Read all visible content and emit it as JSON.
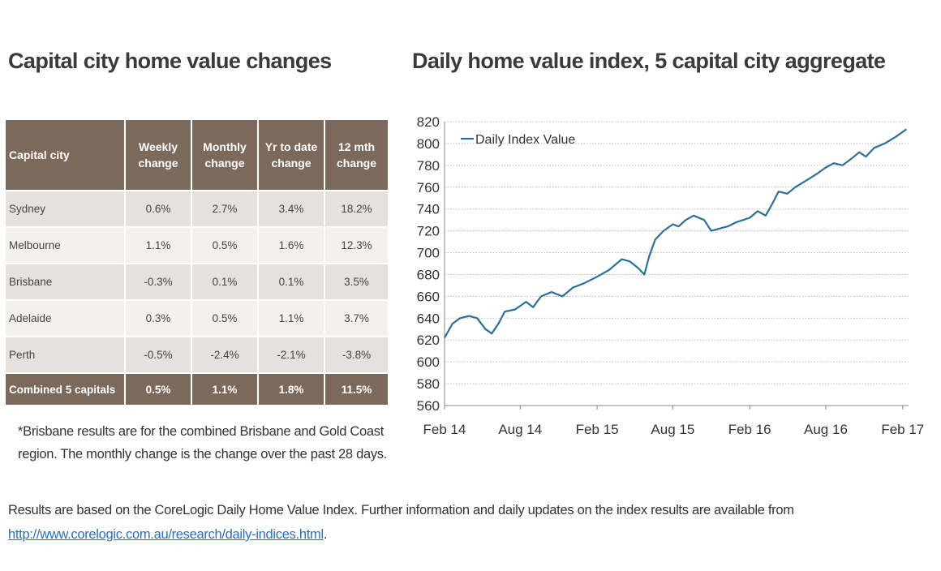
{
  "left_title": "Capital city home value changes",
  "right_title": "Daily home value index, 5 capital city aggregate",
  "table": {
    "headers": [
      "Capital city",
      "Weekly change",
      "Monthly change",
      "Yr to date change",
      "12 mth change"
    ],
    "rows": [
      [
        "Sydney",
        "0.6%",
        "2.7%",
        "3.4%",
        "18.2%"
      ],
      [
        "Melbourne",
        "1.1%",
        "0.5%",
        "1.6%",
        "12.3%"
      ],
      [
        "Brisbane",
        "-0.3%",
        "0.1%",
        "0.1%",
        "3.5%"
      ],
      [
        "Adelaide",
        "0.3%",
        "0.5%",
        "1.1%",
        "3.7%"
      ],
      [
        "Perth",
        "-0.5%",
        "-2.4%",
        "-2.1%",
        "-3.8%"
      ]
    ],
    "total": [
      "Combined 5 capitals",
      "0.5%",
      "1.1%",
      "1.8%",
      "11.5%"
    ]
  },
  "footnote": "*Brisbane results are for the combined Brisbane and Gold Coast region. The monthly change is the change over the past 28 days.",
  "bottom_note": {
    "text": "Results are based on the CoreLogic Daily Home Value Index.  Further information and daily updates on the index results are available from",
    "link": "http://www.corelogic.com.au/research/daily-indices.html",
    "trailing": "."
  },
  "colors": {
    "table_header": "#7b6a5c",
    "row_dark": "#e6e1dd",
    "row_light": "#f3f0ee",
    "line": "#2e6f96"
  },
  "chart_data": {
    "type": "line",
    "title": "Daily home value index, 5 capital city aggregate",
    "xlabel": "",
    "ylabel": "",
    "ylim": [
      560,
      820
    ],
    "yticks": [
      560,
      580,
      600,
      620,
      640,
      660,
      680,
      700,
      720,
      740,
      760,
      780,
      800,
      820
    ],
    "xlim": [
      "2014-02-01",
      "2017-02-15"
    ],
    "xticks": [
      {
        "label": "Feb 14",
        "date": "2014-02-01"
      },
      {
        "label": "Aug 14",
        "date": "2014-08-01"
      },
      {
        "label": "Feb 15",
        "date": "2015-02-01"
      },
      {
        "label": "Aug 15",
        "date": "2015-08-01"
      },
      {
        "label": "Feb 16",
        "date": "2016-02-01"
      },
      {
        "label": "Aug 16",
        "date": "2016-08-01"
      },
      {
        "label": "Feb 17",
        "date": "2017-02-01"
      }
    ],
    "grid": true,
    "legend": "top-left",
    "series": [
      {
        "name": "Daily Index Value",
        "points": [
          [
            "2014-02-01",
            622
          ],
          [
            "2014-02-20",
            635
          ],
          [
            "2014-03-10",
            640
          ],
          [
            "2014-04-01",
            642
          ],
          [
            "2014-04-20",
            640
          ],
          [
            "2014-05-10",
            630
          ],
          [
            "2014-05-25",
            626
          ],
          [
            "2014-06-10",
            635
          ],
          [
            "2014-06-25",
            646
          ],
          [
            "2014-07-20",
            648
          ],
          [
            "2014-08-15",
            655
          ],
          [
            "2014-09-01",
            650
          ],
          [
            "2014-09-20",
            660
          ],
          [
            "2014-10-15",
            664
          ],
          [
            "2014-11-10",
            660
          ],
          [
            "2014-12-05",
            668
          ],
          [
            "2015-01-01",
            672
          ],
          [
            "2015-02-01",
            678
          ],
          [
            "2015-03-01",
            684
          ],
          [
            "2015-04-01",
            694
          ],
          [
            "2015-04-20",
            692
          ],
          [
            "2015-05-10",
            686
          ],
          [
            "2015-05-25",
            680
          ],
          [
            "2015-06-05",
            696
          ],
          [
            "2015-06-20",
            712
          ],
          [
            "2015-07-10",
            720
          ],
          [
            "2015-08-01",
            726
          ],
          [
            "2015-08-15",
            724
          ],
          [
            "2015-09-01",
            730
          ],
          [
            "2015-09-20",
            734
          ],
          [
            "2015-10-15",
            730
          ],
          [
            "2015-11-01",
            720
          ],
          [
            "2015-11-20",
            722
          ],
          [
            "2015-12-10",
            724
          ],
          [
            "2016-01-01",
            728
          ],
          [
            "2016-02-01",
            732
          ],
          [
            "2016-02-20",
            738
          ],
          [
            "2016-03-10",
            734
          ],
          [
            "2016-03-25",
            744
          ],
          [
            "2016-04-10",
            756
          ],
          [
            "2016-05-01",
            754
          ],
          [
            "2016-05-20",
            760
          ],
          [
            "2016-06-15",
            766
          ],
          [
            "2016-07-10",
            772
          ],
          [
            "2016-08-01",
            778
          ],
          [
            "2016-08-20",
            782
          ],
          [
            "2016-09-10",
            780
          ],
          [
            "2016-10-01",
            786
          ],
          [
            "2016-10-20",
            792
          ],
          [
            "2016-11-05",
            788
          ],
          [
            "2016-11-25",
            796
          ],
          [
            "2016-12-20",
            800
          ],
          [
            "2017-01-15",
            806
          ],
          [
            "2017-02-10",
            813
          ]
        ]
      }
    ]
  }
}
